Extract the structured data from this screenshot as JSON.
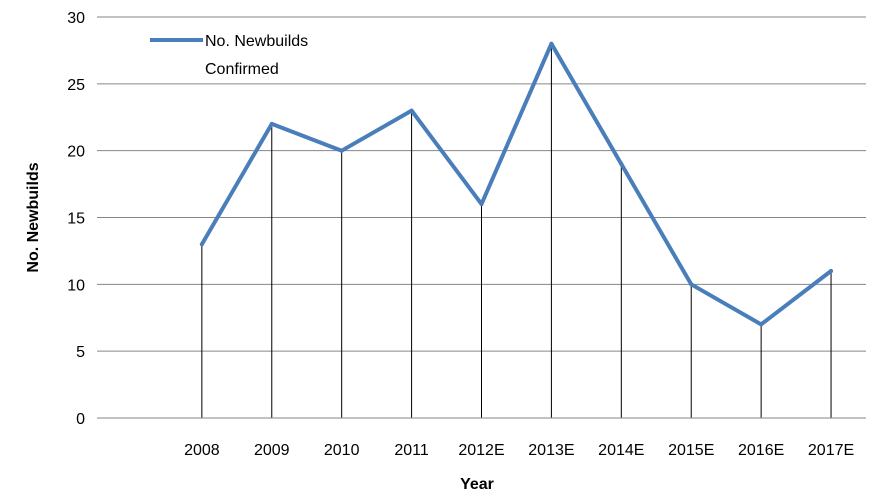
{
  "chart_data": {
    "type": "line",
    "title": "",
    "xlabel": "Year",
    "ylabel": "No. Newbuilds",
    "categories": [
      "2008",
      "2009",
      "2010",
      "2011",
      "2012E",
      "2013E",
      "2014E",
      "2015E",
      "2016E",
      "2017E"
    ],
    "series": [
      {
        "name": "No. Newbuilds Confirmed",
        "values": [
          13,
          22,
          20,
          23,
          16,
          28,
          19,
          10,
          7,
          11
        ],
        "color": "#4a7ebb"
      }
    ],
    "ylim": [
      0,
      30
    ],
    "yticks": [
      0,
      5,
      10,
      15,
      20,
      25,
      30
    ],
    "grid": "horizontal",
    "drop_lines": true,
    "legend_position": "top-left",
    "legend_lines": [
      "No. Newbuilds",
      "Confirmed"
    ]
  }
}
